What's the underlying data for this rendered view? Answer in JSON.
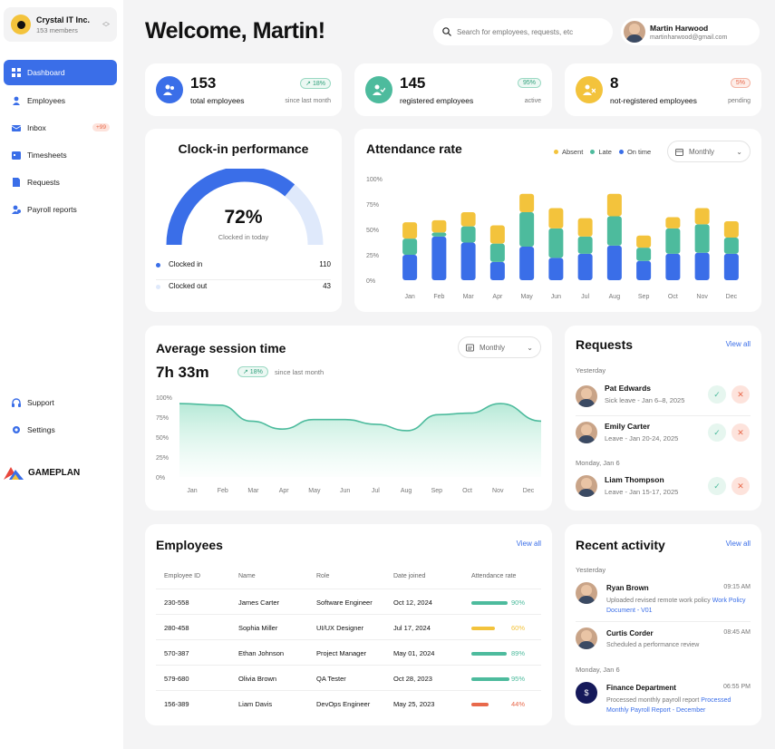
{
  "workspace": {
    "name": "Crystal IT Inc.",
    "members": "153 members"
  },
  "nav": [
    {
      "label": "Dashboard",
      "icon": "grid-icon"
    },
    {
      "label": "Employees",
      "icon": "person-icon"
    },
    {
      "label": "Inbox",
      "icon": "mail-icon",
      "badge": "+99"
    },
    {
      "label": "Timesheets",
      "icon": "calendar-icon"
    },
    {
      "label": "Requests",
      "icon": "document-icon"
    },
    {
      "label": "Payroll reports",
      "icon": "payroll-icon"
    }
  ],
  "nav_bottom": [
    {
      "label": "Support",
      "icon": "headset-icon"
    },
    {
      "label": "Settings",
      "icon": "gear-icon"
    }
  ],
  "brand": "GAMEPLAN",
  "header": {
    "title": "Welcome, Martin!",
    "search_placeholder": "Search for employees, requests, etc"
  },
  "user": {
    "name": "Martin Harwood",
    "email": "martinharwood@gmail.com"
  },
  "stats": [
    {
      "value": "153",
      "label": "total employees",
      "badge": "↗ 18%",
      "note": "since last month",
      "color": "#3a6ee8"
    },
    {
      "value": "145",
      "label": "registered employees",
      "badge": "95%",
      "note": "active",
      "color": "#4dbb9d"
    },
    {
      "value": "8",
      "label": "not-registered employees",
      "badge": "5%",
      "note": "pending",
      "color": "#f3c33c"
    }
  ],
  "clockin": {
    "title": "Clock-in performance",
    "percent": "72%",
    "percent_value": 72,
    "subtitle": "Clocked in today",
    "rows": [
      {
        "label": "Clocked in",
        "value": "110",
        "color": "#3a6ee8"
      },
      {
        "label": "Clocked out",
        "value": "43",
        "color": "#dfe9fb"
      }
    ]
  },
  "attendance": {
    "title": "Attendance rate",
    "dropdown": "Monthly",
    "legend": [
      {
        "label": "Absent",
        "color": "#f3c33c"
      },
      {
        "label": "Late",
        "color": "#4dbb9d"
      },
      {
        "label": "On time",
        "color": "#3a6ee8"
      }
    ]
  },
  "session": {
    "title": "Average session time",
    "dropdown": "Monthly",
    "value": "7h 33m",
    "badge": "↗ 18%",
    "note": "since last month"
  },
  "chart_data": [
    {
      "type": "bar",
      "title": "Attendance rate",
      "categories": [
        "Jan",
        "Feb",
        "Mar",
        "Apr",
        "May",
        "Jun",
        "Jul",
        "Aug",
        "Sep",
        "Oct",
        "Nov",
        "Dec"
      ],
      "y_ticks": [
        "100%",
        "75%",
        "50%",
        "25%",
        "0%"
      ],
      "ylim": [
        0,
        100
      ],
      "stacked": true,
      "series": [
        {
          "name": "On time",
          "color": "#3a6ee8",
          "values": [
            25,
            43,
            37,
            18,
            33,
            22,
            26,
            34,
            19,
            26,
            27,
            26
          ]
        },
        {
          "name": "Late",
          "color": "#4dbb9d",
          "values": [
            16,
            4,
            16,
            18,
            34,
            29,
            17,
            29,
            13,
            25,
            28,
            16
          ]
        },
        {
          "name": "Absent",
          "color": "#f3c33c",
          "values": [
            16,
            12,
            14,
            18,
            18,
            20,
            18,
            22,
            12,
            11,
            16,
            16
          ]
        }
      ]
    },
    {
      "type": "area",
      "title": "Average session time",
      "categories": [
        "Jan",
        "Feb",
        "Mar",
        "Apr",
        "May",
        "Jun",
        "Jul",
        "Aug",
        "Sep",
        "Oct",
        "Nov",
        "Dec"
      ],
      "y_ticks": [
        "100%",
        "75%",
        "50%",
        "25%",
        "0%"
      ],
      "ylim": [
        0,
        100
      ],
      "series": [
        {
          "name": "",
          "color": "#4dbb9d",
          "values": [
            92,
            90,
            70,
            60,
            72,
            72,
            66,
            58,
            78,
            80,
            92,
            70
          ]
        }
      ]
    }
  ],
  "requests": {
    "title": "Requests",
    "view_all": "View all",
    "groups": [
      {
        "label": "Yesterday",
        "items": [
          {
            "name": "Pat Edwards",
            "detail": "Sick leave - Jan 6–8, 2025"
          },
          {
            "name": "Emily Carter",
            "detail": "Leave - Jan 20-24, 2025"
          }
        ]
      },
      {
        "label": "Monday, Jan 6",
        "items": [
          {
            "name": "Liam Thompson",
            "detail": "Leave - Jan 15-17, 2025"
          }
        ]
      }
    ]
  },
  "employees": {
    "title": "Employees",
    "view_all": "View all",
    "columns": [
      "Employee ID",
      "Name",
      "Role",
      "Date joined",
      "Attendance rate"
    ],
    "rows": [
      {
        "id": "230-558",
        "name": "James Carter",
        "role": "Software Engineer",
        "date": "Oct 12, 2024",
        "rate": "90%",
        "rate_value": 90,
        "color": "#4dbb9d"
      },
      {
        "id": "280-458",
        "name": "Sophia Miller",
        "role": "UI/UX Designer",
        "date": "Jul 17, 2024",
        "rate": "60%",
        "rate_value": 60,
        "color": "#f3c33c"
      },
      {
        "id": "570-387",
        "name": "Ethan Johnson",
        "role": "Project Manager",
        "date": "May 01, 2024",
        "rate": "89%",
        "rate_value": 89,
        "color": "#4dbb9d"
      },
      {
        "id": "579-680",
        "name": "Olivia Brown",
        "role": "QA Tester",
        "date": "Oct 28, 2023",
        "rate": "95%",
        "rate_value": 95,
        "color": "#4dbb9d"
      },
      {
        "id": "156-389",
        "name": "Liam Davis",
        "role": "DevOps Engineer",
        "date": "May 25, 2023",
        "rate": "44%",
        "rate_value": 44,
        "color": "#e8694b"
      }
    ]
  },
  "activity": {
    "title": "Recent activity",
    "view_all": "View all",
    "groups": [
      {
        "label": "Yesterday",
        "items": [
          {
            "name": "Ryan Brown",
            "time": "09:15 AM",
            "text": "Uploaded revised remote work policy ",
            "link": "Work Policy Document - V01"
          },
          {
            "name": "Curtis Corder",
            "time": "08:45 AM",
            "text": "Scheduled a performance review",
            "link": ""
          }
        ]
      },
      {
        "label": "Monday, Jan 6",
        "items": [
          {
            "name": "Finance Department",
            "time": "06:55 PM",
            "text": "Processed monthly payroll report ",
            "link": "Processed Monthly Payroll Report - December"
          }
        ]
      }
    ]
  }
}
